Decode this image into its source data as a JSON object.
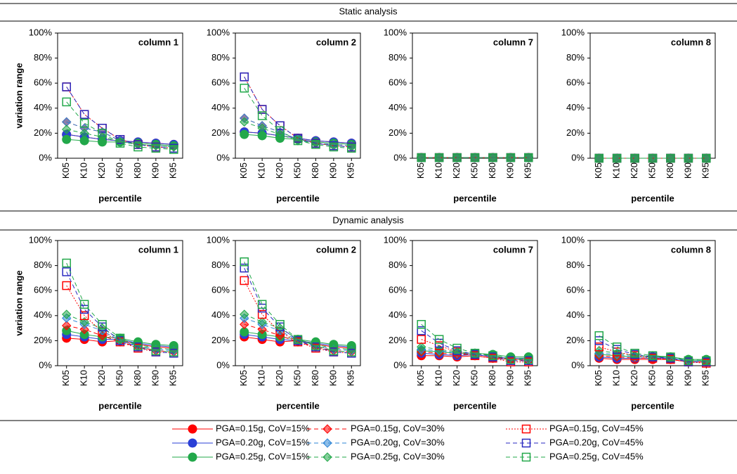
{
  "chart_data": {
    "type": "line",
    "categories": [
      "K05",
      "K10",
      "K20",
      "K50",
      "K80",
      "K90",
      "K95"
    ],
    "xlabel": "percentile",
    "ylabel": "variation range",
    "ylim": [
      0,
      100
    ],
    "yticks": [
      {
        "value": 0,
        "label": "0%"
      },
      {
        "value": 20,
        "label": "20%"
      },
      {
        "value": 40,
        "label": "40%"
      },
      {
        "value": 60,
        "label": "60%"
      },
      {
        "value": 80,
        "label": "80%"
      },
      {
        "value": 100,
        "label": "100%"
      }
    ],
    "series": [
      {
        "name": "PGA=0.15g, CoV=15%",
        "color": "#ff0000",
        "dash": "solid",
        "marker": "circle"
      },
      {
        "name": "PGA=0.20g, CoV=15%",
        "color": "#2a3fd6",
        "dash": "solid",
        "marker": "circle"
      },
      {
        "name": "PGA=0.25g, CoV=15%",
        "color": "#22a84a",
        "dash": "solid",
        "marker": "circle"
      },
      {
        "name": "PGA=0.15g, CoV=30%",
        "color": "#ff0000",
        "dash": "dashed",
        "marker": "diamond"
      },
      {
        "name": "PGA=0.20g, CoV=30%",
        "color": "#2e86d6",
        "dash": "dashed",
        "marker": "diamond"
      },
      {
        "name": "PGA=0.25g, CoV=30%",
        "color": "#22a84a",
        "dash": "dashed",
        "marker": "diamond"
      },
      {
        "name": "PGA=0.15g, CoV=45%",
        "color": "#ff0000",
        "dash": "dotted",
        "marker": "square"
      },
      {
        "name": "PGA=0.20g, CoV=45%",
        "color": "#2a2ac0",
        "dash": "dashed",
        "marker": "square"
      },
      {
        "name": "PGA=0.25g, CoV=45%",
        "color": "#22a84a",
        "dash": "dashed",
        "marker": "square"
      }
    ],
    "sections": [
      {
        "title": "Static analysis",
        "panels": [
          {
            "title": "column 1",
            "values": [
              [
                19,
                17,
                15,
                14,
                13,
                12,
                11
              ],
              [
                19,
                17,
                15,
                14,
                13,
                12,
                11
              ],
              [
                15,
                14,
                13,
                13,
                12,
                11,
                10
              ],
              [
                29,
                24,
                21,
                14,
                11,
                10,
                9
              ],
              [
                29,
                24,
                21,
                14,
                11,
                10,
                9
              ],
              [
                23,
                20,
                17,
                13,
                11,
                10,
                9
              ],
              [
                57,
                35,
                24,
                15,
                11,
                9,
                8
              ],
              [
                57,
                35,
                24,
                15,
                11,
                9,
                8
              ],
              [
                45,
                28,
                20,
                12,
                9,
                8,
                7
              ]
            ]
          },
          {
            "title": "column 2",
            "values": [
              [
                21,
                20,
                18,
                16,
                14,
                13,
                12
              ],
              [
                21,
                20,
                18,
                16,
                14,
                13,
                12
              ],
              [
                19,
                18,
                16,
                15,
                13,
                12,
                11
              ],
              [
                32,
                26,
                21,
                15,
                12,
                11,
                10
              ],
              [
                32,
                26,
                21,
                15,
                12,
                11,
                10
              ],
              [
                29,
                24,
                19,
                14,
                12,
                10,
                9
              ],
              [
                65,
                39,
                26,
                16,
                12,
                10,
                9
              ],
              [
                65,
                39,
                26,
                16,
                12,
                10,
                9
              ],
              [
                56,
                34,
                22,
                14,
                11,
                9,
                8
              ]
            ]
          },
          {
            "title": "column 7",
            "values": [
              [
                0.5,
                0.5,
                0.5,
                0.5,
                0.5,
                0.5,
                0.5
              ],
              [
                0.5,
                0.5,
                0.5,
                0.5,
                0.5,
                0.5,
                0.5
              ],
              [
                0.5,
                0.5,
                0.5,
                0.5,
                0.5,
                0.5,
                0.5
              ],
              [
                0.5,
                0.5,
                0.5,
                0.5,
                0.5,
                0.5,
                0.5
              ],
              [
                0.5,
                0.5,
                0.5,
                0.5,
                0.5,
                0.5,
                0.5
              ],
              [
                0.5,
                0.5,
                0.5,
                0.5,
                0.5,
                0.5,
                0.5
              ],
              [
                0.5,
                0.5,
                0.5,
                0.5,
                0.5,
                0.5,
                0.5
              ],
              [
                0.5,
                0.5,
                0.5,
                0.5,
                0.5,
                0.5,
                0.5
              ],
              [
                0.5,
                0.5,
                0.5,
                0.5,
                0.5,
                0.5,
                0.5
              ]
            ]
          },
          {
            "title": "column 8",
            "values": [
              [
                0,
                0,
                0,
                0,
                0,
                0,
                0
              ],
              [
                0,
                0,
                0,
                0,
                0,
                0,
                0
              ],
              [
                0,
                0,
                0,
                0,
                0,
                0,
                0
              ],
              [
                0,
                0,
                0,
                0,
                0,
                0,
                0
              ],
              [
                0,
                0,
                0,
                0,
                0,
                0,
                0
              ],
              [
                0,
                0,
                0,
                0,
                0,
                0,
                0
              ],
              [
                0,
                0,
                0,
                0,
                0,
                0,
                0
              ],
              [
                0,
                0,
                0,
                0,
                0,
                0,
                0
              ],
              [
                0,
                0,
                0,
                0,
                0,
                0,
                0
              ]
            ]
          }
        ]
      },
      {
        "title": "Dynamic analysis",
        "panels": [
          {
            "title": "column 1",
            "values": [
              [
                22,
                21,
                19,
                20,
                17,
                15,
                14
              ],
              [
                25,
                23,
                21,
                21,
                18,
                16,
                15
              ],
              [
                28,
                25,
                23,
                22,
                19,
                17,
                16
              ],
              [
                32,
                29,
                24,
                19,
                15,
                12,
                11
              ],
              [
                38,
                33,
                28,
                20,
                16,
                13,
                12
              ],
              [
                41,
                35,
                30,
                21,
                17,
                14,
                13
              ],
              [
                64,
                40,
                27,
                19,
                14,
                11,
                10
              ],
              [
                75,
                45,
                31,
                20,
                15,
                11,
                10
              ],
              [
                82,
                49,
                33,
                22,
                16,
                12,
                11
              ]
            ]
          },
          {
            "title": "column 2",
            "values": [
              [
                23,
                21,
                19,
                20,
                17,
                15,
                14
              ],
              [
                25,
                23,
                21,
                20,
                18,
                16,
                15
              ],
              [
                27,
                25,
                23,
                21,
                19,
                17,
                16
              ],
              [
                33,
                29,
                24,
                19,
                15,
                12,
                11
              ],
              [
                38,
                33,
                28,
                20,
                16,
                13,
                12
              ],
              [
                41,
                35,
                30,
                21,
                17,
                14,
                13
              ],
              [
                68,
                41,
                27,
                19,
                14,
                11,
                10
              ],
              [
                78,
                46,
                31,
                20,
                15,
                11,
                10
              ],
              [
                83,
                49,
                33,
                21,
                16,
                12,
                11
              ]
            ]
          },
          {
            "title": "column 7",
            "values": [
              [
                8,
                8,
                7,
                8,
                6,
                5,
                5
              ],
              [
                10,
                9,
                8,
                9,
                7,
                6,
                6
              ],
              [
                12,
                11,
                10,
                10,
                9,
                7,
                7
              ],
              [
                11,
                10,
                9,
                9,
                7,
                5,
                4
              ],
              [
                13,
                12,
                10,
                9,
                8,
                6,
                5
              ],
              [
                15,
                13,
                11,
                10,
                8,
                6,
                6
              ],
              [
                21,
                16,
                11,
                8,
                6,
                3,
                3
              ],
              [
                28,
                18,
                12,
                9,
                7,
                4,
                4
              ],
              [
                33,
                21,
                14,
                10,
                8,
                5,
                5
              ]
            ]
          },
          {
            "title": "column 8",
            "values": [
              [
                6,
                5,
                5,
                5,
                5,
                3,
                3
              ],
              [
                7,
                6,
                6,
                6,
                6,
                4,
                4
              ],
              [
                9,
                8,
                7,
                7,
                7,
                5,
                5
              ],
              [
                8,
                7,
                6,
                6,
                5,
                3,
                3
              ],
              [
                10,
                9,
                7,
                7,
                6,
                4,
                4
              ],
              [
                12,
                10,
                8,
                8,
                7,
                5,
                4
              ],
              [
                15,
                11,
                8,
                6,
                5,
                3,
                2
              ],
              [
                20,
                13,
                9,
                7,
                6,
                3,
                3
              ],
              [
                24,
                15,
                10,
                8,
                7,
                4,
                4
              ]
            ]
          }
        ]
      }
    ]
  }
}
